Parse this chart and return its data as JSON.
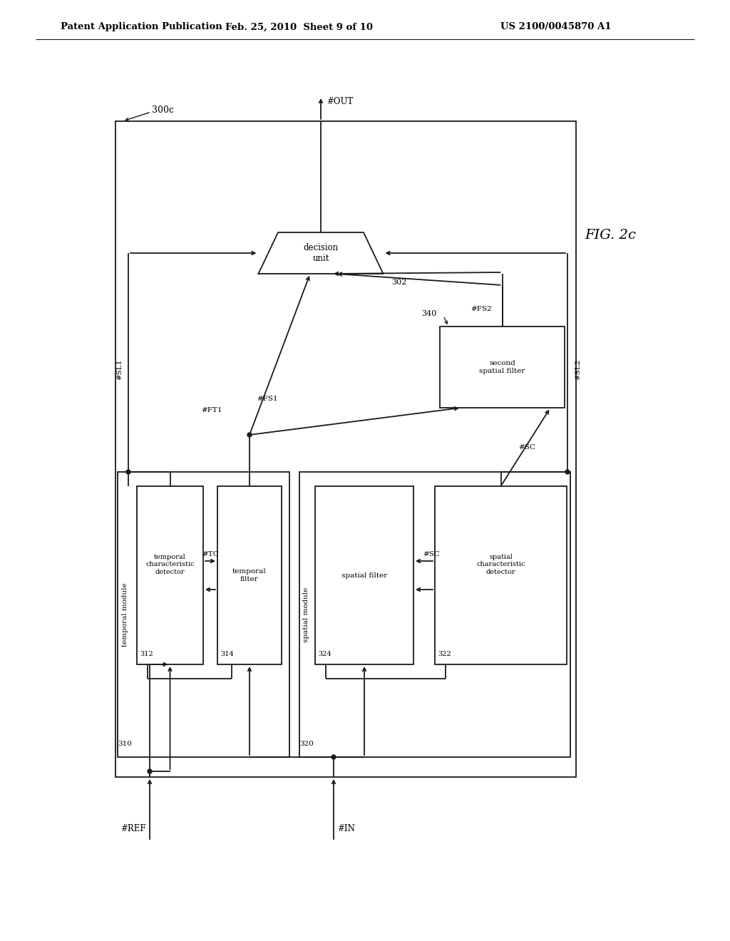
{
  "bg_color": "#ffffff",
  "lc": "#1a1a1a",
  "header_left": "Patent Application Publication",
  "header_mid": "Feb. 25, 2010  Sheet 9 of 10",
  "header_right": "US 2100/0045870 A1",
  "fig_label": "FIG. 2c",
  "diagram_ref": "300c"
}
